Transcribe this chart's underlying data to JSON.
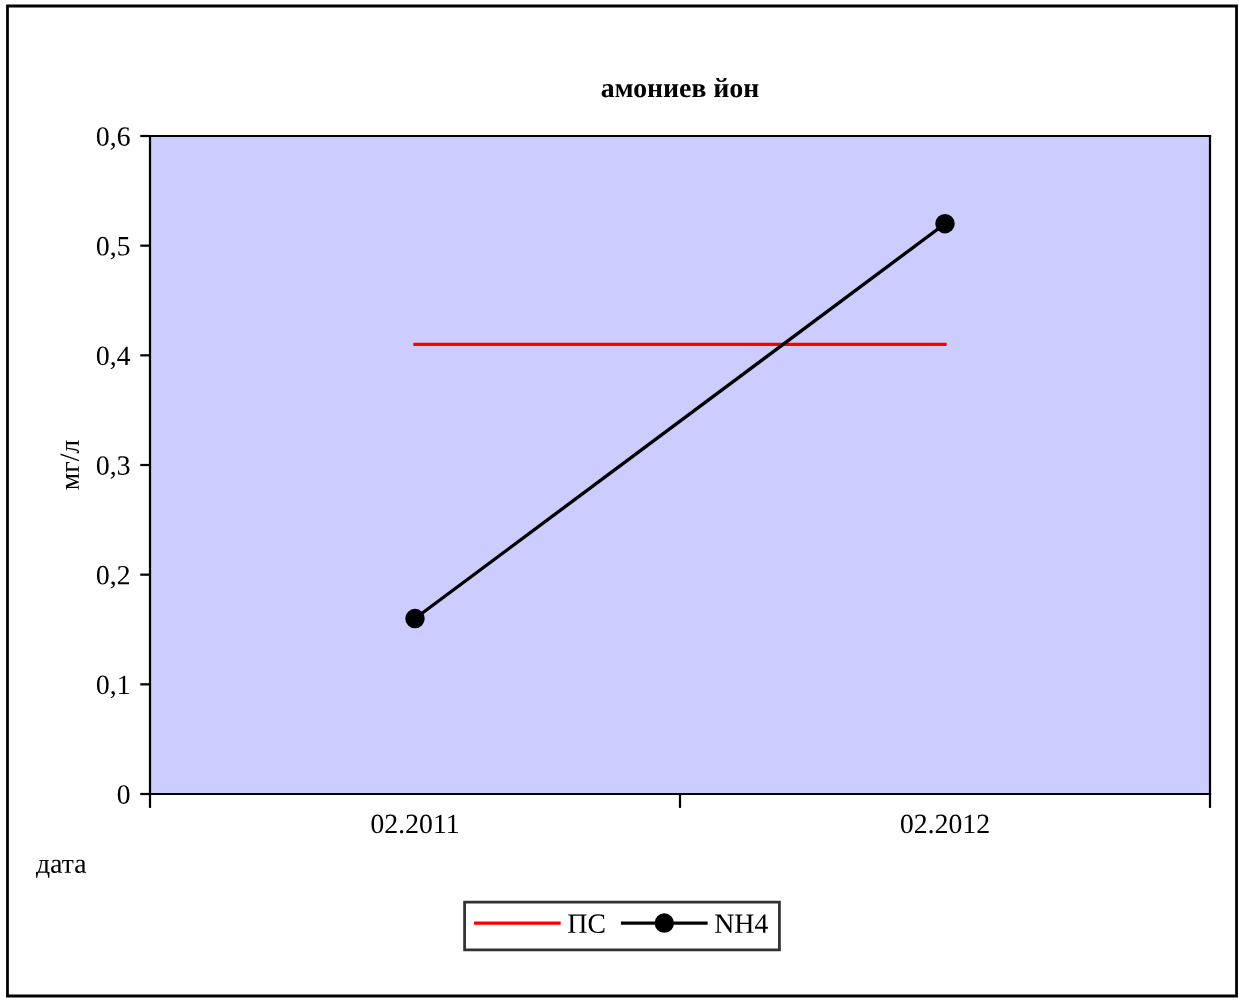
{
  "chart_data": {
    "type": "line",
    "title": "амониев йон",
    "xlabel": "дата",
    "ylabel": "мг/л",
    "categories": [
      "02.2011",
      "02.2012"
    ],
    "series": [
      {
        "name": "ПС",
        "color": "#ff0000",
        "values": [
          0.41,
          0.41
        ],
        "marker": "none"
      },
      {
        "name": "NH4",
        "color": "#000000",
        "values": [
          0.16,
          0.52
        ],
        "marker": "circle"
      }
    ],
    "ylim": [
      0,
      0.6
    ],
    "yticks": [
      {
        "value": 0,
        "label": "0"
      },
      {
        "value": 0.1,
        "label": "0,1"
      },
      {
        "value": 0.2,
        "label": "0,2"
      },
      {
        "value": 0.3,
        "label": "0,3"
      },
      {
        "value": 0.4,
        "label": "0,4"
      },
      {
        "value": 0.5,
        "label": "0,5"
      },
      {
        "value": 0.6,
        "label": "0,6"
      }
    ],
    "grid": false,
    "legend": "bottom",
    "line_style": "solid"
  }
}
